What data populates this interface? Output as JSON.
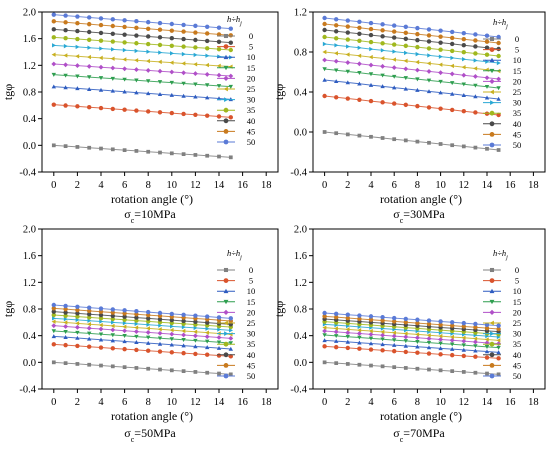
{
  "figure": {
    "panels": [
      {
        "caption_symbol": "σ",
        "caption_sub": "c",
        "caption_value": "=10MPa"
      },
      {
        "caption_symbol": "σ",
        "caption_sub": "c",
        "caption_value": "=30MPa"
      },
      {
        "caption_symbol": "σ",
        "caption_sub": "c",
        "caption_value": "=50MPa"
      },
      {
        "caption_symbol": "σ",
        "caption_sub": "c",
        "caption_value": "=70MPa"
      }
    ],
    "legend_title": "h÷h",
    "legend_title_sub": "j",
    "legend_placement": "right",
    "series_colors": [
      "#808080",
      "#d9532c",
      "#2e5cc0",
      "#2e9e4f",
      "#b04fc8",
      "#c8b020",
      "#29a8d4",
      "#a0b81e",
      "#4a4a4a",
      "#c87a1e",
      "#5a7ad6"
    ],
    "series_markers": [
      "square",
      "circle",
      "triangle-up",
      "triangle-down",
      "diamond",
      "triangle-left",
      "triangle-right",
      "hexagon",
      "circle",
      "circle",
      "circle"
    ]
  },
  "chart_data": [
    {
      "type": "line",
      "title": "σc=10MPa",
      "xlabel": "rotation angle (°)",
      "ylabel": "tgφ",
      "xlim": [
        -1,
        19
      ],
      "ylim": [
        -0.4,
        2.0
      ],
      "xticks": [
        "0",
        "2",
        "4",
        "6",
        "8",
        "10",
        "12",
        "14",
        "16",
        "18"
      ],
      "yticks": [
        "-0.4",
        "0.0",
        "0.4",
        "0.8",
        "1.2",
        "1.6",
        "2.0"
      ],
      "grid": false,
      "x": [
        0,
        1,
        2,
        3,
        4,
        5,
        6,
        7,
        8,
        9,
        10,
        11,
        12,
        13,
        14,
        15
      ],
      "series": [
        {
          "name": "0",
          "start": 0.0,
          "end": -0.18
        },
        {
          "name": "5",
          "start": 0.61,
          "end": 0.42
        },
        {
          "name": "10",
          "start": 0.88,
          "end": 0.69
        },
        {
          "name": "15",
          "start": 1.06,
          "end": 0.88
        },
        {
          "name": "20",
          "start": 1.22,
          "end": 1.04
        },
        {
          "name": "25",
          "start": 1.36,
          "end": 1.18
        },
        {
          "name": "30",
          "start": 1.5,
          "end": 1.32
        },
        {
          "name": "35",
          "start": 1.62,
          "end": 1.43
        },
        {
          "name": "40",
          "start": 1.74,
          "end": 1.54
        },
        {
          "name": "45",
          "start": 1.86,
          "end": 1.65
        },
        {
          "name": "50",
          "start": 1.96,
          "end": 1.75
        }
      ]
    },
    {
      "type": "line",
      "title": "σc=30MPa",
      "xlabel": "rotation angle (°)",
      "ylabel": "tgφ",
      "xlim": [
        -1,
        19
      ],
      "ylim": [
        -0.4,
        1.2
      ],
      "xticks": [
        "0",
        "2",
        "4",
        "6",
        "8",
        "10",
        "12",
        "14",
        "16",
        "18"
      ],
      "yticks": [
        "-0.4",
        "0.0",
        "0.4",
        "0.8",
        "1.2"
      ],
      "grid": false,
      "x": [
        0,
        1,
        2,
        3,
        4,
        5,
        6,
        7,
        8,
        9,
        10,
        11,
        12,
        13,
        14,
        15
      ],
      "series": [
        {
          "name": "0",
          "start": 0.0,
          "end": -0.18
        },
        {
          "name": "5",
          "start": 0.36,
          "end": 0.17
        },
        {
          "name": "10",
          "start": 0.52,
          "end": 0.33
        },
        {
          "name": "15",
          "start": 0.63,
          "end": 0.44
        },
        {
          "name": "20",
          "start": 0.72,
          "end": 0.53
        },
        {
          "name": "25",
          "start": 0.8,
          "end": 0.61
        },
        {
          "name": "30",
          "start": 0.88,
          "end": 0.69
        },
        {
          "name": "35",
          "start": 0.95,
          "end": 0.76
        },
        {
          "name": "40",
          "start": 1.02,
          "end": 0.83
        },
        {
          "name": "45",
          "start": 1.08,
          "end": 0.89
        },
        {
          "name": "50",
          "start": 1.14,
          "end": 0.95
        }
      ]
    },
    {
      "type": "line",
      "title": "σc=50MPa",
      "xlabel": "rotation angle (°)",
      "ylabel": "tgφ",
      "xlim": [
        -1,
        19
      ],
      "ylim": [
        -0.4,
        2.0
      ],
      "xticks": [
        "0",
        "2",
        "4",
        "6",
        "8",
        "10",
        "12",
        "14",
        "16",
        "18"
      ],
      "yticks": [
        "-0.4",
        "0.0",
        "0.4",
        "0.8",
        "1.2",
        "1.6",
        "2.0"
      ],
      "grid": false,
      "x": [
        0,
        1,
        2,
        3,
        4,
        5,
        6,
        7,
        8,
        9,
        10,
        11,
        12,
        13,
        14,
        15
      ],
      "series": [
        {
          "name": "0",
          "start": 0.0,
          "end": -0.18
        },
        {
          "name": "5",
          "start": 0.27,
          "end": 0.09
        },
        {
          "name": "10",
          "start": 0.39,
          "end": 0.2
        },
        {
          "name": "15",
          "start": 0.47,
          "end": 0.29
        },
        {
          "name": "20",
          "start": 0.55,
          "end": 0.36
        },
        {
          "name": "25",
          "start": 0.61,
          "end": 0.42
        },
        {
          "name": "30",
          "start": 0.66,
          "end": 0.48
        },
        {
          "name": "35",
          "start": 0.71,
          "end": 0.53
        },
        {
          "name": "40",
          "start": 0.76,
          "end": 0.57
        },
        {
          "name": "45",
          "start": 0.81,
          "end": 0.62
        },
        {
          "name": "50",
          "start": 0.86,
          "end": 0.66
        }
      ]
    },
    {
      "type": "line",
      "title": "σc=70MPa",
      "xlabel": "rotation angle (°)",
      "ylabel": "tgφ",
      "xlim": [
        -1,
        19
      ],
      "ylim": [
        -0.4,
        2.0
      ],
      "xticks": [
        "0",
        "2",
        "4",
        "6",
        "8",
        "10",
        "12",
        "14",
        "16",
        "18"
      ],
      "yticks": [
        "-0.4",
        "0.0",
        "0.4",
        "0.8",
        "1.2",
        "1.6",
        "2.0"
      ],
      "grid": false,
      "x": [
        0,
        1,
        2,
        3,
        4,
        5,
        6,
        7,
        8,
        9,
        10,
        11,
        12,
        13,
        14,
        15
      ],
      "series": [
        {
          "name": "0",
          "start": 0.0,
          "end": -0.18
        },
        {
          "name": "5",
          "start": 0.24,
          "end": 0.06
        },
        {
          "name": "10",
          "start": 0.33,
          "end": 0.15
        },
        {
          "name": "15",
          "start": 0.41,
          "end": 0.22
        },
        {
          "name": "20",
          "start": 0.47,
          "end": 0.28
        },
        {
          "name": "25",
          "start": 0.52,
          "end": 0.33
        },
        {
          "name": "30",
          "start": 0.57,
          "end": 0.38
        },
        {
          "name": "35",
          "start": 0.61,
          "end": 0.42
        },
        {
          "name": "40",
          "start": 0.65,
          "end": 0.46
        },
        {
          "name": "45",
          "start": 0.69,
          "end": 0.5
        },
        {
          "name": "50",
          "start": 0.74,
          "end": 0.55
        }
      ]
    }
  ]
}
